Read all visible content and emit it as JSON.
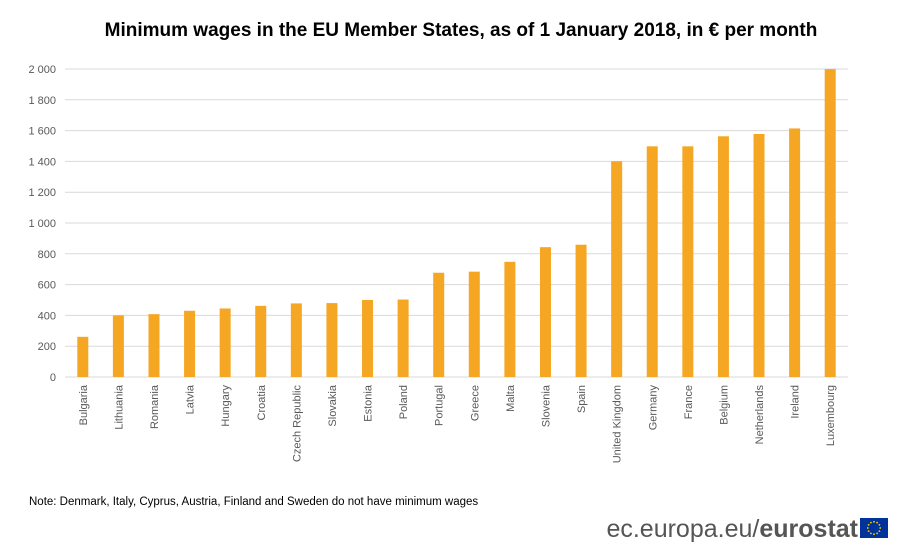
{
  "chart_data": {
    "type": "bar",
    "title": "Minimum wages in the EU Member States, as of 1 January 2018, in € per month",
    "xlabel": "",
    "ylabel": "",
    "ylim": [
      0,
      2000
    ],
    "yticks": [
      0,
      200,
      400,
      600,
      800,
      1000,
      1200,
      1400,
      1600,
      1800,
      2000
    ],
    "ytick_labels": [
      "0",
      "200",
      "400",
      "600",
      "800",
      "1 000",
      "1 200",
      "1 400",
      "1 600",
      "1 800",
      "2 000"
    ],
    "grid": true,
    "bar_color": "#F5A623",
    "categories": [
      "Bulgaria",
      "Lithuania",
      "Romania",
      "Latvia",
      "Hungary",
      "Croatia",
      "Czech Republic",
      "Slovakia",
      "Estonia",
      "Poland",
      "Portugal",
      "Greece",
      "Malta",
      "Slovenia",
      "Spain",
      "United Kingdom",
      "Germany",
      "France",
      "Belgium",
      "Netherlands",
      "Ireland",
      "Luxembourg"
    ],
    "values": [
      261,
      400,
      408,
      430,
      445,
      462,
      478,
      480,
      500,
      503,
      677,
      684,
      748,
      843,
      859,
      1401,
      1498,
      1498,
      1563,
      1578,
      1614,
      1999
    ]
  },
  "note": "Note:  Denmark, Italy, Cyprus, Austria, Finland and Sweden do not have minimum wages",
  "footer": {
    "site": "ec.europa.eu/",
    "brand": "eurostat"
  },
  "colors": {
    "bar": "#F5A623",
    "grid": "#D9D9D9",
    "axis_text": "#595959",
    "flag_blue": "#003399",
    "flag_star": "#FFCC00"
  }
}
